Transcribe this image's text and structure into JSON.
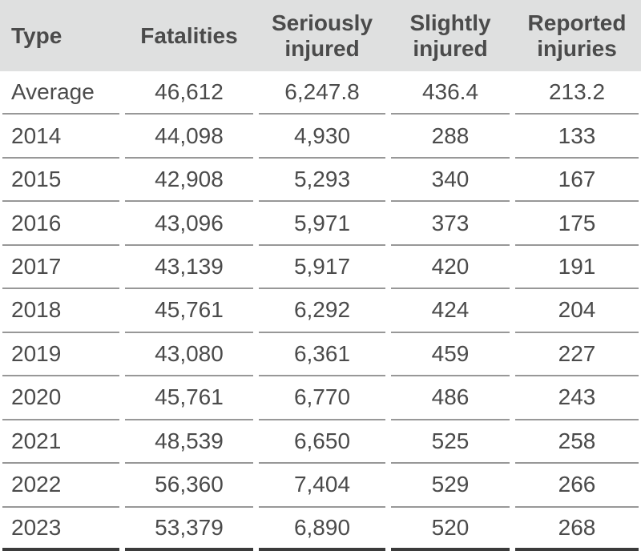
{
  "table": {
    "columns": [
      {
        "key": "type",
        "label": "Type"
      },
      {
        "key": "fatalities",
        "label": "Fatalities"
      },
      {
        "key": "seriously_injured",
        "label": "Seriously injured"
      },
      {
        "key": "slightly_injured",
        "label": "Slightly injured"
      },
      {
        "key": "reported_injuries",
        "label": "Reported injuries"
      }
    ],
    "rows": [
      {
        "cells": [
          "Average",
          "46,612",
          "6,247.8",
          "436.4",
          "213.2"
        ]
      },
      {
        "cells": [
          "2014",
          "44,098",
          "4,930",
          "288",
          "133"
        ]
      },
      {
        "cells": [
          "2015",
          "42,908",
          "5,293",
          "340",
          "167"
        ]
      },
      {
        "cells": [
          "2016",
          "43,096",
          "5,971",
          "373",
          "175"
        ]
      },
      {
        "cells": [
          "2017",
          "43,139",
          "5,917",
          "420",
          "191"
        ]
      },
      {
        "cells": [
          "2018",
          "45,761",
          "6,292",
          "424",
          "204"
        ]
      },
      {
        "cells": [
          "2019",
          "43,080",
          "6,361",
          "459",
          "227"
        ]
      },
      {
        "cells": [
          "2020",
          "45,761",
          "6,770",
          "486",
          "243"
        ]
      },
      {
        "cells": [
          "2021",
          "48,539",
          "6,650",
          "525",
          "258"
        ]
      },
      {
        "cells": [
          "2022",
          "56,360",
          "7,404",
          "529",
          "266"
        ]
      },
      {
        "cells": [
          "2023",
          "53,379",
          "6,890",
          "520",
          "268"
        ]
      }
    ]
  },
  "chart_data": {
    "type": "table",
    "title": "",
    "columns": [
      "Type",
      "Fatalities",
      "Seriously injured",
      "Slightly injured",
      "Reported injuries"
    ],
    "categories": [
      "Average",
      "2014",
      "2015",
      "2016",
      "2017",
      "2018",
      "2019",
      "2020",
      "2021",
      "2022",
      "2023"
    ],
    "series": [
      {
        "name": "Fatalities",
        "values": [
          46612,
          44098,
          42908,
          43096,
          43139,
          45761,
          43080,
          45761,
          48539,
          56360,
          53379
        ]
      },
      {
        "name": "Seriously injured",
        "values": [
          6247.8,
          4930,
          5293,
          5971,
          5917,
          6292,
          6361,
          6770,
          6650,
          7404,
          6890
        ]
      },
      {
        "name": "Slightly injured",
        "values": [
          436.4,
          288,
          340,
          373,
          420,
          424,
          459,
          486,
          525,
          529,
          520
        ]
      },
      {
        "name": "Reported injuries",
        "values": [
          213.2,
          133,
          167,
          175,
          191,
          204,
          227,
          243,
          258,
          266,
          268
        ]
      }
    ]
  },
  "colors": {
    "header_bg": "#dfe0e0",
    "header_text": "#2d2d2d",
    "body_text": "#4b4b4b",
    "row_divider": "#989898",
    "bottom_border": "#3b3b3b"
  }
}
